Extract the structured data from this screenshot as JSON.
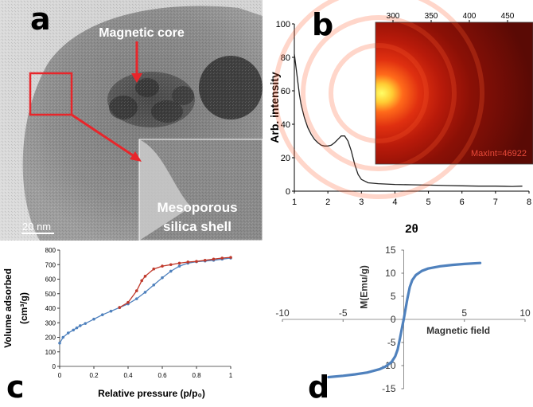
{
  "panels": {
    "a": {
      "label": "a",
      "core_label": "Magnetic core",
      "shell_label_line1": "Mesoporous",
      "shell_label_line2": "silica shell",
      "scale_bar": "20 nm"
    },
    "b": {
      "label": "b",
      "ylabel": "Arb. intensity",
      "xlabel": "2θ",
      "inset_text": "MaxInt=46922",
      "inset_ticks": [
        "300",
        "350",
        "400",
        "450"
      ]
    },
    "c": {
      "label": "c",
      "ylabel_line1": "Volume adsorbed",
      "ylabel_line2": "(cm³/g)",
      "xlabel": "Relative pressure (p/p₀)"
    },
    "d": {
      "label": "d",
      "ylabel": "M(Emu/g)",
      "xlabel": "Magnetic field"
    }
  },
  "colors": {
    "arrow_red": "#e8262b",
    "adsorption_blue": "#4f81bd",
    "desorption_red": "#c0392b",
    "hysteresis_blue": "#4f81bd"
  },
  "chart_data": [
    {
      "id": "b",
      "type": "line",
      "title": "",
      "xlabel": "2θ",
      "ylabel": "Arb. intensity",
      "xlim": [
        1,
        8
      ],
      "ylim": [
        0,
        100
      ],
      "xticks": [
        "1",
        "2",
        "3",
        "4",
        "5",
        "6",
        "7",
        "8"
      ],
      "yticks": [
        "0",
        "20",
        "40",
        "60",
        "80",
        "100"
      ],
      "series": [
        {
          "x": [
            1.0,
            1.05,
            1.1,
            1.15,
            1.2,
            1.3,
            1.4,
            1.5,
            1.6,
            1.7,
            1.8,
            1.9,
            2.0,
            2.1,
            2.2,
            2.3,
            2.4,
            2.5,
            2.6,
            2.7,
            2.8,
            2.9,
            3.0,
            3.2,
            3.5,
            4.0,
            4.5,
            5.0,
            5.5,
            6.0,
            6.5,
            7.0,
            7.5,
            7.8
          ],
          "y": [
            82,
            74,
            66,
            58,
            52,
            44,
            38,
            34,
            31,
            29,
            27.5,
            27,
            27,
            27.5,
            29,
            31,
            33,
            33,
            30,
            24,
            16,
            10,
            7,
            5,
            4.5,
            4,
            3.8,
            3.6,
            3.4,
            3.2,
            3,
            3,
            2.8,
            3
          ]
        }
      ]
    },
    {
      "id": "c",
      "type": "line",
      "title": "",
      "xlabel": "Relative pressure (p/p₀)",
      "ylabel": "Volume adsorbed (cm³/g)",
      "xlim": [
        0,
        1
      ],
      "ylim": [
        0,
        800
      ],
      "xticks": [
        "0",
        "0.2",
        "0.4",
        "0.6",
        "0.8",
        "1"
      ],
      "yticks": [
        "0",
        "100",
        "200",
        "300",
        "400",
        "500",
        "600",
        "700",
        "800"
      ],
      "series": [
        {
          "name": "",
          "x": [
            0.0,
            0.02,
            0.05,
            0.08,
            0.1,
            0.12,
            0.15,
            0.2,
            0.25,
            0.3,
            0.35,
            0.4,
            0.45,
            0.5,
            0.55,
            0.6,
            0.65,
            0.7,
            0.75,
            0.8,
            0.85,
            0.9,
            0.95,
            1.0
          ],
          "y": [
            160,
            200,
            230,
            250,
            265,
            280,
            295,
            325,
            355,
            380,
            405,
            430,
            465,
            510,
            560,
            610,
            655,
            690,
            710,
            720,
            725,
            730,
            738,
            745
          ]
        },
        {
          "name": "",
          "x": [
            0.35,
            0.4,
            0.45,
            0.48,
            0.5,
            0.55,
            0.6,
            0.65,
            0.7,
            0.75,
            0.8,
            0.85,
            0.9,
            0.95,
            1.0
          ],
          "y": [
            405,
            440,
            520,
            590,
            620,
            670,
            690,
            700,
            710,
            718,
            722,
            730,
            738,
            745,
            750
          ]
        }
      ]
    },
    {
      "id": "d",
      "type": "line",
      "title": "",
      "xlabel": "Magnetic field",
      "ylabel": "M(Emu/g)",
      "xlim": [
        -10,
        10
      ],
      "ylim": [
        -15,
        15
      ],
      "xticks": [
        "-10",
        "-5",
        "0",
        "5",
        "10"
      ],
      "yticks": [
        "-15",
        "-10",
        "-5",
        "0",
        "5",
        "10",
        "15"
      ],
      "series": [
        {
          "x": [
            -6.2,
            -5,
            -4,
            -3,
            -2,
            -1.5,
            -1,
            -0.7,
            -0.5,
            -0.3,
            -0.1,
            0,
            0.1,
            0.3,
            0.5,
            0.7,
            1,
            1.5,
            2,
            3,
            4,
            5,
            6.3
          ],
          "y": [
            -12.5,
            -12.2,
            -11.9,
            -11.5,
            -10.8,
            -10.2,
            -9.2,
            -8,
            -6.5,
            -4,
            -1.2,
            0,
            1.5,
            4.5,
            7,
            8.5,
            9.6,
            10.5,
            11,
            11.5,
            11.8,
            12,
            12.2
          ]
        }
      ]
    }
  ]
}
